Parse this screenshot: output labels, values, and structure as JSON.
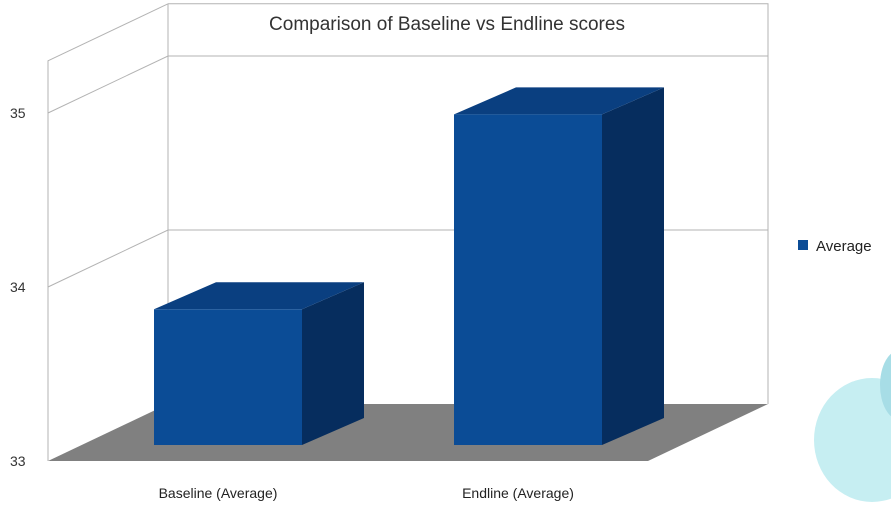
{
  "chart_data": {
    "type": "bar",
    "title": "Comparison of Baseline vs Endline scores",
    "categories": [
      "Baseline (Average)",
      "Endline (Average)"
    ],
    "series": [
      {
        "name": "Average",
        "values": [
          33.78,
          34.9
        ]
      }
    ],
    "yticks": [
      33,
      34,
      35
    ],
    "ylim": [
      33,
      35.3
    ],
    "grid": true,
    "legend_position": "right",
    "style": "3d",
    "colors": {
      "bar_front": "#0b4c96",
      "bar_top": "#0a3f80",
      "bar_side": "#062d5e",
      "floor": "#808080",
      "grid": "#b3b3b3",
      "decor_circle": "#c6eef2"
    }
  }
}
